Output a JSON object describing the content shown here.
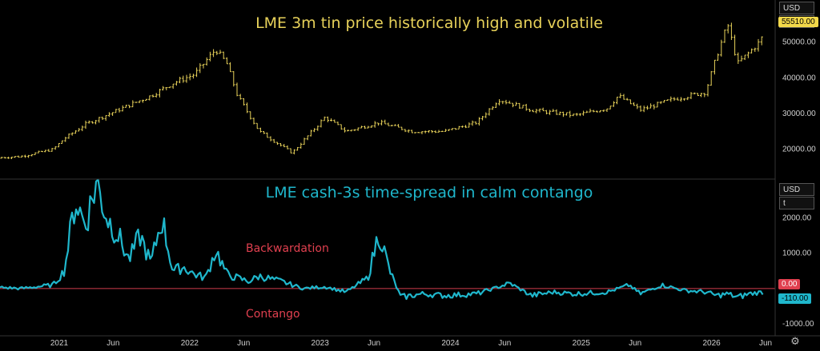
{
  "toolbar": {
    "currency_top": "USD",
    "unit_top": "t",
    "currency_bottom": "USD",
    "unit_bottom": "t"
  },
  "colors": {
    "price": "#e8d25a",
    "spread": "#1fb7cc",
    "zero_line": "#d23c4e",
    "annotation": "#e0404f",
    "price_badge": "#f2d84a",
    "zero_badge": "#e0404f",
    "spread_badge": "#1fb7cc"
  },
  "annotations": {
    "backwardation": "Backwardation",
    "contango": "Contango"
  },
  "chart_data": [
    {
      "type": "line",
      "chart_style": "ohlc-bars",
      "title": "LME 3m tin price historically high and volatile",
      "ylim": [
        13000,
        60000
      ],
      "y_ticks": [
        20000,
        30000,
        40000,
        50000
      ],
      "y_tick_labels": [
        "20000.00",
        "30000.00",
        "40000.00",
        "50000.00"
      ],
      "last_value_label": "55510.00",
      "grid": false,
      "series": [
        {
          "x": [
            "2020-06",
            "2020-09",
            "2020-12",
            "2021-01",
            "2021-03",
            "2021-06",
            "2021-09",
            "2021-11",
            "2022-01",
            "2022-03",
            "2022-04",
            "2022-05",
            "2022-07",
            "2022-10",
            "2023-01",
            "2023-03",
            "2023-06",
            "2023-09",
            "2023-12",
            "2024-03",
            "2024-05",
            "2024-08",
            "2024-12",
            "2025-03",
            "2025-04",
            "2025-06",
            "2025-09",
            "2025-12",
            "2026-01",
            "2026-02",
            "2026-03",
            "2026-04",
            "2026-05",
            "2026-06"
          ],
          "values": [
            17500,
            18000,
            20000,
            23000,
            27000,
            31000,
            35000,
            38500,
            41000,
            48000,
            44000,
            35000,
            25000,
            19000,
            29000,
            25000,
            27500,
            25000,
            25000,
            27500,
            34000,
            31000,
            29500,
            31500,
            35000,
            31000,
            34000,
            36000,
            46000,
            55000,
            44000,
            47000,
            50000,
            55510
          ]
        }
      ]
    },
    {
      "type": "line",
      "title": "LME cash-3s time-spread in calm contango",
      "ylim": [
        -1200,
        3000
      ],
      "y_ticks": [
        -1000,
        0,
        1000,
        2000
      ],
      "y_tick_labels": [
        "-1000.00",
        "0.00",
        "1000.00",
        "2000.00"
      ],
      "reference_line": 0,
      "zero_label": "0.00",
      "last_value_label": "-110.00",
      "grid": false,
      "series": [
        {
          "x": [
            "2020-06",
            "2020-09",
            "2020-12",
            "2021-01",
            "2021-02",
            "2021-03",
            "2021-04",
            "2021-05",
            "2021-06",
            "2021-07",
            "2021-08",
            "2021-09",
            "2021-10",
            "2021-11",
            "2021-12",
            "2022-01",
            "2022-02",
            "2022-03",
            "2022-04",
            "2022-05",
            "2022-06",
            "2022-07",
            "2022-09",
            "2022-11",
            "2023-01",
            "2023-03",
            "2023-05",
            "2023-06",
            "2023-07",
            "2023-08",
            "2023-10",
            "2023-12",
            "2024-03",
            "2024-06",
            "2024-08",
            "2024-10",
            "2024-12",
            "2025-03",
            "2025-05",
            "2025-06",
            "2025-08",
            "2025-10",
            "2025-12",
            "2026-01",
            "2026-02",
            "2026-03",
            "2026-04",
            "2026-05"
          ],
          "values": [
            50,
            0,
            100,
            500,
            2500,
            1800,
            3000,
            2000,
            1500,
            800,
            1500,
            700,
            2000,
            500,
            600,
            400,
            300,
            1100,
            400,
            300,
            200,
            350,
            200,
            0,
            50,
            -100,
            300,
            1600,
            500,
            -250,
            -150,
            -200,
            -150,
            150,
            -200,
            -100,
            -150,
            -100,
            100,
            -150,
            100,
            -50,
            -100,
            -200,
            -150,
            -250,
            -150,
            -110
          ]
        }
      ]
    }
  ],
  "x_axis": {
    "tick_labels": [
      "2021",
      "Jun",
      "2022",
      "Jun",
      "2023",
      "Jun",
      "2024",
      "Jun",
      "2025",
      "Jun",
      "2026",
      "Jun"
    ],
    "tick_dates": [
      "2021-01",
      "2021-06",
      "2022-01",
      "2022-06",
      "2023-01",
      "2023-06",
      "2024-01",
      "2024-06",
      "2025-01",
      "2025-06",
      "2026-01",
      "2026-06"
    ]
  }
}
